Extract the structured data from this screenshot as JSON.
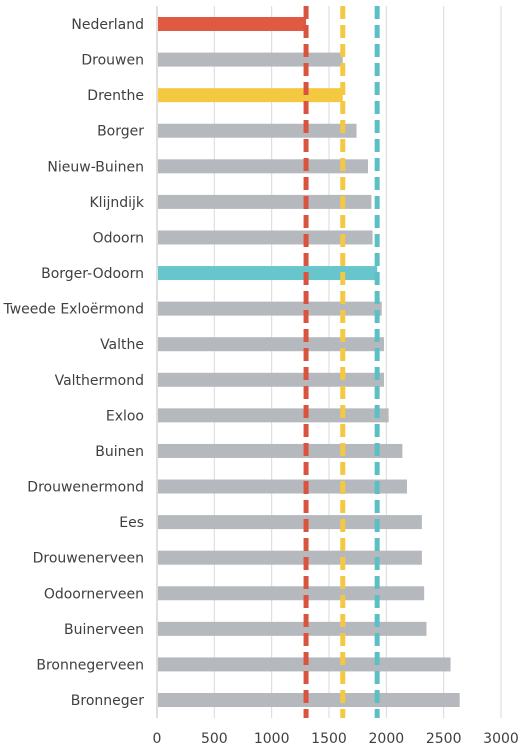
{
  "chart_data": {
    "type": "bar",
    "orientation": "horizontal",
    "title": "",
    "xlabel": "",
    "ylabel": "",
    "xlim": [
      0,
      3000
    ],
    "x_ticks": [
      0,
      500,
      1000,
      1500,
      2000,
      2500,
      3000
    ],
    "grid": "vertical",
    "legend": "none",
    "categories": [
      "Nederland",
      "Drouwen",
      "Drenthe",
      "Borger",
      "Nieuw-Buinen",
      "Klijndijk",
      "Odoorn",
      "Borger-Odoorn",
      "Tweede Exloërmond",
      "Valthe",
      "Valthermond",
      "Exloo",
      "Buinen",
      "Drouwenermond",
      "Ees",
      "Drouwenerveen",
      "Odoornerveen",
      "Buinerveen",
      "Bronnegerveen",
      "Bronneger"
    ],
    "values": [
      1300,
      1620,
      1620,
      1740,
      1840,
      1870,
      1880,
      1920,
      1960,
      1980,
      1980,
      2020,
      2140,
      2180,
      2310,
      2310,
      2330,
      2350,
      2560,
      2640
    ],
    "bar_colors": [
      "#E05A43",
      "#B5B9BD",
      "#F5C842",
      "#B5B9BD",
      "#B5B9BD",
      "#B5B9BD",
      "#B5B9BD",
      "#67C6CC",
      "#B5B9BD",
      "#B5B9BD",
      "#B5B9BD",
      "#B5B9BD",
      "#B5B9BD",
      "#B5B9BD",
      "#B5B9BD",
      "#B5B9BD",
      "#B5B9BD",
      "#B5B9BD",
      "#B5B9BD",
      "#B5B9BD"
    ],
    "reference_lines": [
      {
        "value": 1300,
        "color": "#D9533E",
        "style": "dashed"
      },
      {
        "value": 1620,
        "color": "#F5C842",
        "style": "dashed"
      },
      {
        "value": 1920,
        "color": "#5BBFC4",
        "style": "dashed"
      }
    ]
  }
}
